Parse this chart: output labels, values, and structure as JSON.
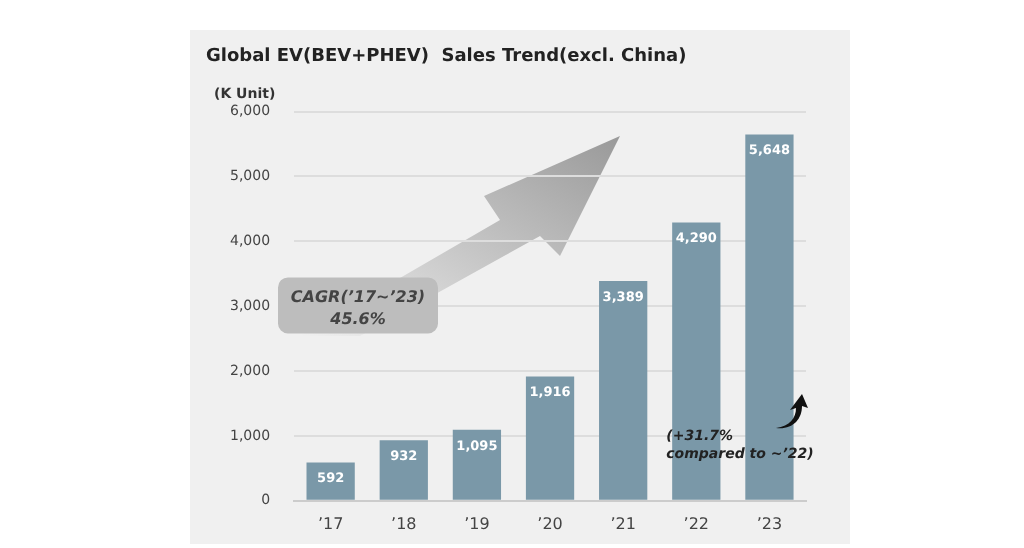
{
  "chart_data": {
    "type": "bar",
    "title": "Global EV(BEV+PHEV)  Sales Trend(excl. China)",
    "ylabel": "(K Unit)",
    "categories": [
      "’17",
      "’18",
      "’19",
      "’20",
      "’21",
      "’22",
      "’23"
    ],
    "values": [
      592,
      932,
      1095,
      1916,
      3389,
      4290,
      5648
    ],
    "color": "#7a98a8",
    "ylim": [
      0,
      6000
    ],
    "yticks": [
      {
        "value": 0,
        "label": "0"
      },
      {
        "value": 1000,
        "label": "1,000"
      },
      {
        "value": 2000,
        "label": "2,000"
      },
      {
        "value": 3000,
        "label": "3,000"
      },
      {
        "value": 4000,
        "label": "4,000"
      },
      {
        "value": 5000,
        "label": "5,000"
      },
      {
        "value": 6000,
        "label": "6,000"
      }
    ],
    "grid": "y",
    "legend": false,
    "data_labels": true,
    "value_labels": [
      "592",
      "932",
      "1,095",
      "1,916",
      "3,389",
      "4,290",
      "5,648"
    ],
    "annotations": [
      "CAGR(’17~’23)\n45.6%",
      "(+31.7%\ncompared to ~’22)"
    ]
  }
}
